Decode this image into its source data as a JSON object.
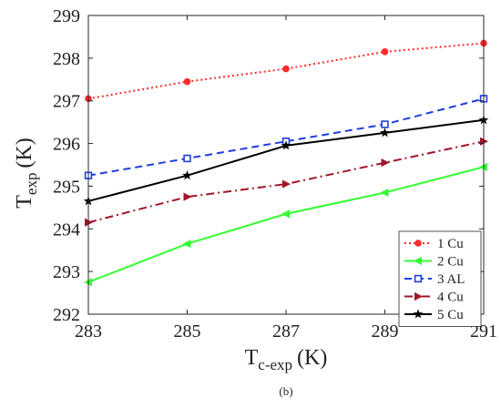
{
  "chart_data": {
    "type": "line",
    "xlabel": "T",
    "xlabel_sub": "c-exp",
    "xlabel_unit": "(K)",
    "ylabel": "T",
    "ylabel_sub": "exp",
    "ylabel_unit": "(K)",
    "caption": "(b)",
    "xlim": [
      283,
      291
    ],
    "ylim": [
      292,
      299
    ],
    "x": [
      283,
      285,
      287,
      289,
      291
    ],
    "x_ticks": [
      "283",
      "285",
      "287",
      "289",
      "291"
    ],
    "y_ticks": [
      "292",
      "293",
      "294",
      "295",
      "296",
      "297",
      "298",
      "299"
    ],
    "grid": false,
    "legend_position": "bottom-right",
    "series": [
      {
        "name": "1 Cu",
        "values": [
          297.05,
          297.45,
          297.75,
          298.15,
          298.35
        ],
        "color": "#ff2b2b",
        "dash": "dotted",
        "marker": "circle"
      },
      {
        "name": "2 Cu",
        "values": [
          292.75,
          293.65,
          294.35,
          294.85,
          295.45
        ],
        "color": "#33ff33",
        "dash": "solid",
        "marker": "triangle-left"
      },
      {
        "name": "3 AL",
        "values": [
          295.25,
          295.65,
          296.05,
          296.45,
          297.05
        ],
        "color": "#1f3fe0",
        "dash": "dashed",
        "marker": "square"
      },
      {
        "name": "4 Cu",
        "values": [
          294.15,
          294.75,
          295.05,
          295.55,
          296.05
        ],
        "color": "#a0162b",
        "dash": "dashdot",
        "marker": "triangle-right"
      },
      {
        "name": "5 Cu",
        "values": [
          294.65,
          295.25,
          295.95,
          296.25,
          296.55
        ],
        "color": "#000000",
        "dash": "solid",
        "marker": "star"
      }
    ]
  }
}
